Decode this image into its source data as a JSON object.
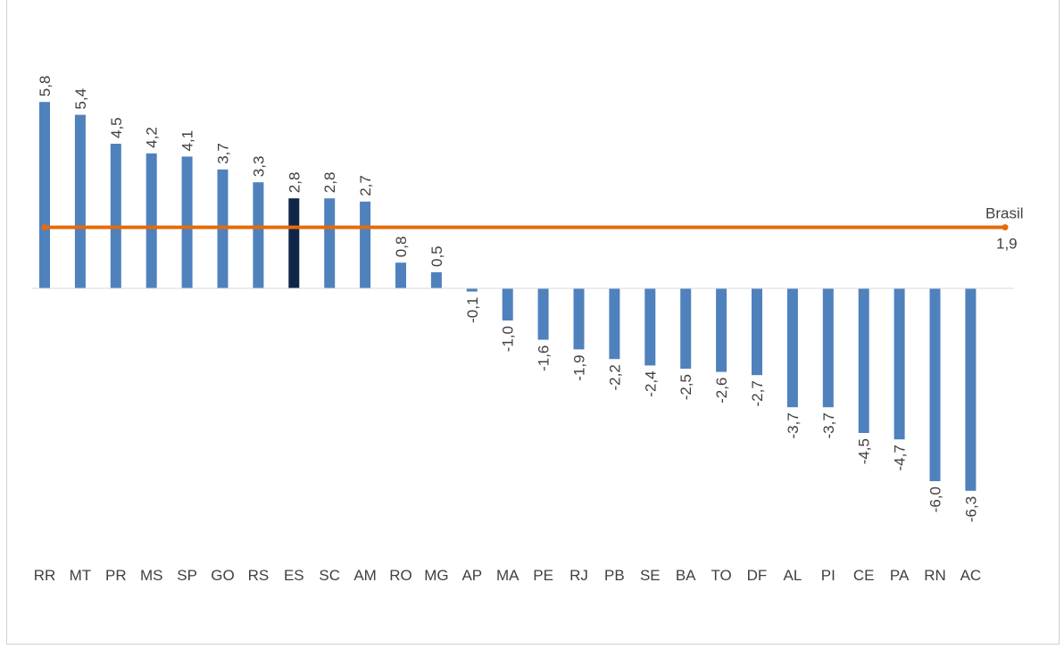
{
  "chart_data": {
    "type": "bar",
    "title": "",
    "xlabel": "",
    "ylabel": "",
    "categories": [
      "RR",
      "MT",
      "PR",
      "MS",
      "SP",
      "GO",
      "RS",
      "ES",
      "SC",
      "AM",
      "RO",
      "MG",
      "AP",
      "MA",
      "PE",
      "RJ",
      "PB",
      "SE",
      "BA",
      "TO",
      "DF",
      "AL",
      "PI",
      "CE",
      "PA",
      "RN",
      "AC"
    ],
    "values": [
      5.8,
      5.4,
      4.5,
      4.2,
      4.1,
      3.7,
      3.3,
      2.8,
      2.8,
      2.7,
      0.8,
      0.5,
      -0.1,
      -1.0,
      -1.6,
      -1.9,
      -2.2,
      -2.4,
      -2.5,
      -2.6,
      -2.7,
      -3.7,
      -3.7,
      -4.5,
      -4.7,
      -6.0,
      -6.3
    ],
    "value_labels": [
      "5,8",
      "5,4",
      "4,5",
      "4,2",
      "4,1",
      "3,7",
      "3,3",
      "2,8",
      "2,8",
      "2,7",
      "0,8",
      "0,5",
      "-0,1",
      "-1,0",
      "-1,6",
      "-1,9",
      "-2,2",
      "-2,4",
      "-2,5",
      "-2,6",
      "-2,7",
      "-3,7",
      "-3,7",
      "-4,5",
      "-4,7",
      "-6,0",
      "-6,3"
    ],
    "highlight_category": "ES",
    "colors": {
      "bar": "#4F81BD",
      "highlight": "#0F2547",
      "reference_line": "#E46C0A",
      "axis": "#D9D9D9"
    },
    "reference_line": {
      "label": "Brasil",
      "value": 1.9,
      "value_label": "1,9"
    },
    "grid": false,
    "legend": "none"
  }
}
